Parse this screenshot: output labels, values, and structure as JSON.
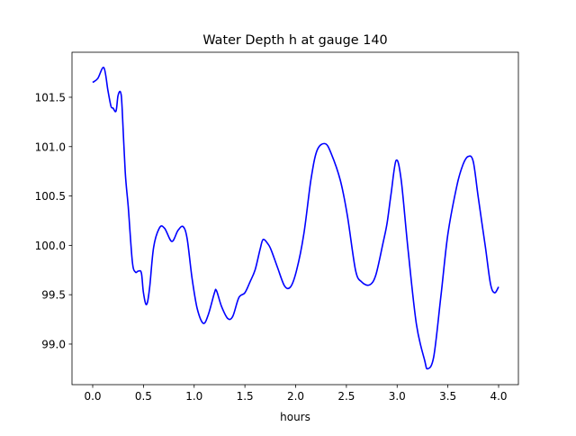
{
  "chart_data": {
    "type": "line",
    "title": "Water Depth h at gauge 140",
    "xlabel": "hours",
    "ylabel": "",
    "xlim": [
      -0.204,
      4.195
    ],
    "ylim": [
      98.589,
      101.956
    ],
    "xticks": [
      0.0,
      0.5,
      1.0,
      1.5,
      2.0,
      2.5,
      3.0,
      3.5,
      4.0
    ],
    "xtick_labels": [
      "0.0",
      "0.5",
      "1.0",
      "1.5",
      "2.0",
      "2.5",
      "3.0",
      "3.5",
      "4.0"
    ],
    "yticks": [
      99.0,
      99.5,
      100.0,
      100.5,
      101.0,
      101.5
    ],
    "ytick_labels": [
      "99.0",
      "99.5",
      "100.0",
      "100.5",
      "101.0",
      "101.5"
    ],
    "grid": false,
    "series": [
      {
        "name": "h",
        "color": "#0000ff",
        "x": [
          0.0,
          0.05,
          0.11,
          0.15,
          0.18,
          0.2,
          0.23,
          0.25,
          0.275,
          0.29,
          0.32,
          0.35,
          0.39,
          0.42,
          0.45,
          0.48,
          0.5,
          0.53,
          0.56,
          0.6,
          0.66,
          0.71,
          0.78,
          0.84,
          0.89,
          0.93,
          0.98,
          1.03,
          1.09,
          1.14,
          1.2,
          1.22,
          1.27,
          1.33,
          1.38,
          1.44,
          1.5,
          1.55,
          1.6,
          1.65,
          1.68,
          1.73,
          1.76,
          1.82,
          1.89,
          1.95,
          2.01,
          2.08,
          2.15,
          2.21,
          2.29,
          2.35,
          2.44,
          2.51,
          2.59,
          2.65,
          2.73,
          2.79,
          2.86,
          2.9,
          2.94,
          2.99,
          3.04,
          3.11,
          3.19,
          3.27,
          3.3,
          3.36,
          3.43,
          3.5,
          3.59,
          3.65,
          3.7,
          3.75,
          3.8,
          3.87,
          3.92,
          3.96,
          4.0
        ],
        "y": [
          101.65,
          101.69,
          101.8,
          101.57,
          101.41,
          101.39,
          101.36,
          101.52,
          101.55,
          101.39,
          100.75,
          100.39,
          99.84,
          99.73,
          99.74,
          99.72,
          99.52,
          99.4,
          99.56,
          99.98,
          100.18,
          100.17,
          100.04,
          100.15,
          100.19,
          100.07,
          99.66,
          99.36,
          99.21,
          99.3,
          99.52,
          99.54,
          99.38,
          99.26,
          99.28,
          99.47,
          99.52,
          99.63,
          99.75,
          99.96,
          100.06,
          100.01,
          99.95,
          99.78,
          99.59,
          99.58,
          99.75,
          100.11,
          100.66,
          100.96,
          101.03,
          100.93,
          100.66,
          100.3,
          99.75,
          99.63,
          99.6,
          99.7,
          100.02,
          100.22,
          100.52,
          100.86,
          100.66,
          99.93,
          99.2,
          98.84,
          98.75,
          98.87,
          99.47,
          100.11,
          100.61,
          100.82,
          100.9,
          100.85,
          100.48,
          99.98,
          99.61,
          99.52,
          99.58
        ]
      }
    ]
  }
}
